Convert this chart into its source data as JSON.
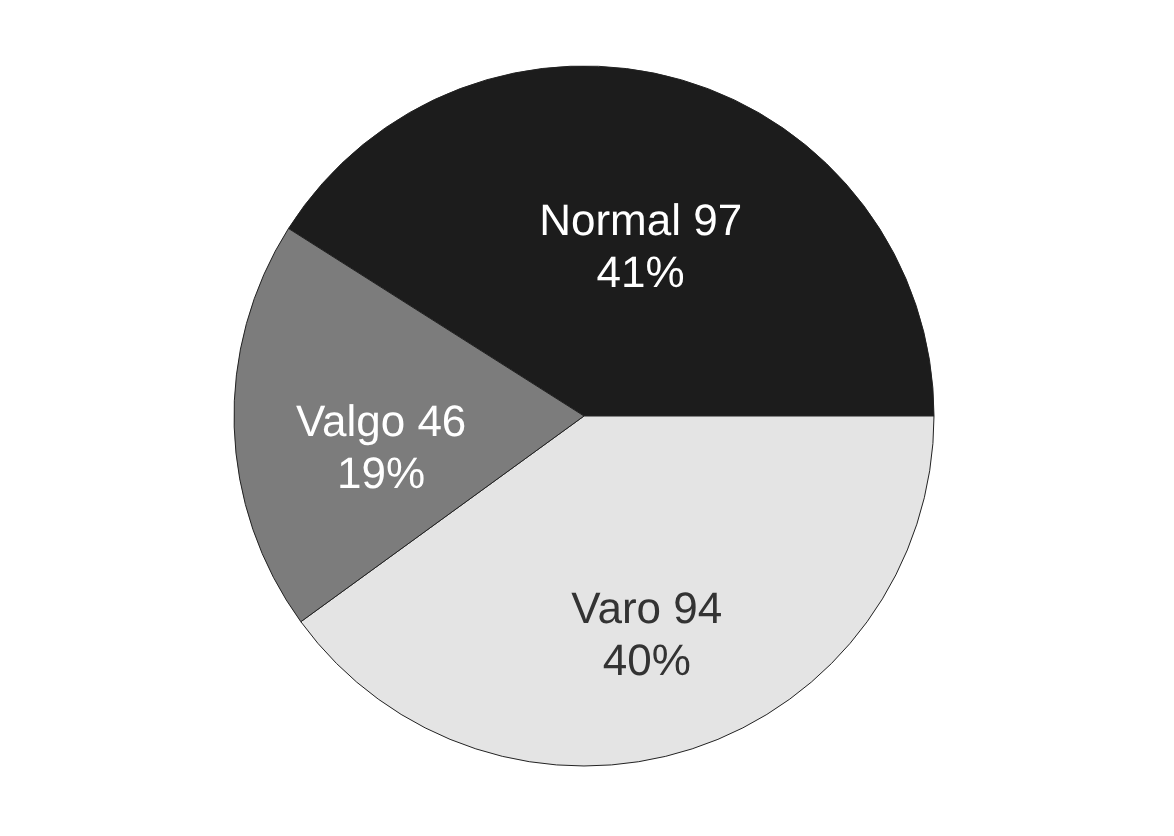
{
  "chart_data": {
    "type": "pie",
    "categories": [
      "Normal 97",
      "Varo 94",
      "Valgo 46"
    ],
    "values": [
      41,
      40,
      19
    ],
    "value_labels": [
      "41%",
      "40%",
      "19%"
    ],
    "colors": [
      "#1c1c1c",
      "#e4e4e4",
      "#7c7c7c"
    ]
  }
}
